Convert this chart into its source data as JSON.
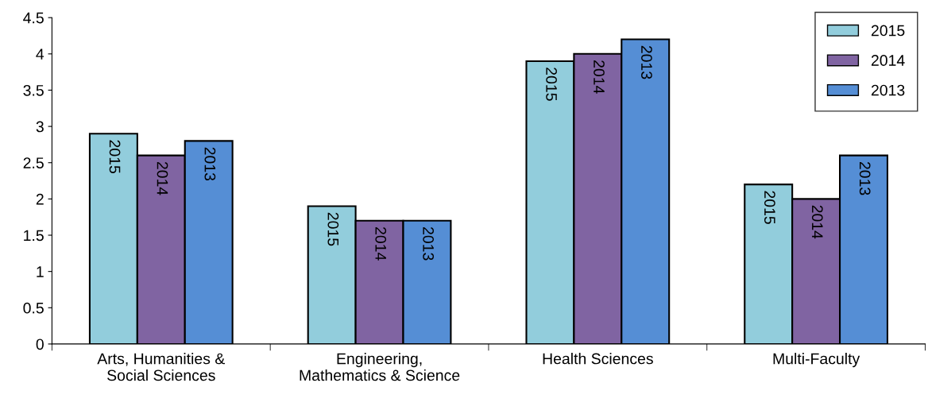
{
  "chart_data": {
    "type": "bar",
    "categories": [
      "Arts, Humanities &\nSocial Sciences",
      "Engineering,\nMathematics & Science",
      "Health Sciences",
      "Multi-Faculty"
    ],
    "series": [
      {
        "name": "2015",
        "color": "#92cddc",
        "values": [
          2.9,
          1.9,
          3.9,
          2.2
        ]
      },
      {
        "name": "2014",
        "color": "#8064a2",
        "values": [
          2.6,
          1.7,
          4.0,
          2.0
        ]
      },
      {
        "name": "2013",
        "color": "#558ed5",
        "values": [
          2.8,
          1.7,
          4.2,
          2.6
        ]
      }
    ],
    "ylim": [
      0,
      4.5
    ],
    "yticks": [
      0,
      0.5,
      1,
      1.5,
      2,
      2.5,
      3,
      3.5,
      4,
      4.5
    ],
    "grid": false,
    "legend": "top right"
  }
}
